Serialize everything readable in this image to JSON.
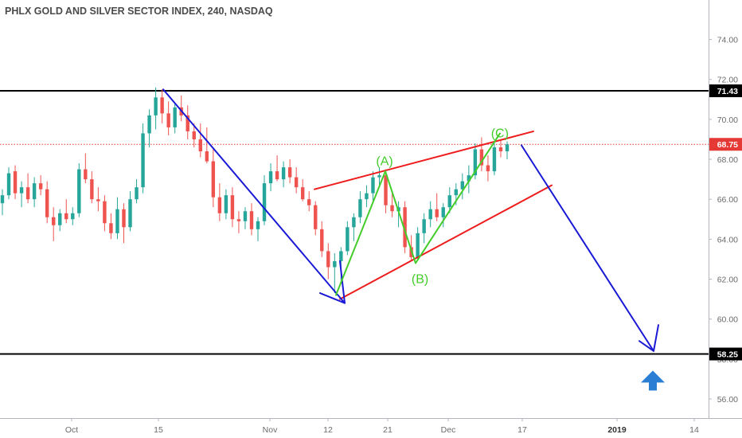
{
  "title": "PHLX GOLD AND SILVER SECTOR INDEX, 240, NASDAQ",
  "colors": {
    "up": "#26a69a",
    "down": "#ef5350",
    "wave_blue": "#1a1ad6",
    "wave_green": "#44cc2a",
    "channel_red": "#ee1c1c",
    "level_black": "#000000",
    "current_price": "#e53935",
    "arrow_blue": "#2a7fd4"
  },
  "chart_data": {
    "type": "candlestick",
    "grid": false,
    "ylim": [
      55.3,
      75.2
    ],
    "y_ticks": [
      "74.00",
      "72.00",
      "70.00",
      "68.00",
      "66.00",
      "64.00",
      "62.00",
      "60.00",
      "58.00",
      "56.00"
    ],
    "x_ticks": [
      "Oct",
      "15",
      "Nov",
      "12",
      "21",
      "Dec",
      "17",
      "2019",
      "14"
    ],
    "x_tick_bold": [
      "2019"
    ],
    "price_tags": [
      {
        "label": "71.43",
        "value": 71.43,
        "style": "black"
      },
      {
        "label": "68.75",
        "value": 68.75,
        "style": "red"
      },
      {
        "label": "58.25",
        "value": 58.25,
        "style": "black"
      }
    ],
    "horizontal_levels": [
      71.43,
      58.25
    ],
    "current_price": 68.75,
    "candles": [
      {
        "o": 65.8,
        "h": 66.5,
        "l": 65.2,
        "c": 66.2
      },
      {
        "o": 66.2,
        "h": 67.6,
        "l": 66.0,
        "c": 67.3
      },
      {
        "o": 67.4,
        "h": 67.7,
        "l": 66.0,
        "c": 66.3
      },
      {
        "o": 66.3,
        "h": 66.9,
        "l": 65.6,
        "c": 66.6
      },
      {
        "o": 66.6,
        "h": 67.3,
        "l": 65.8,
        "c": 66.0
      },
      {
        "o": 66.0,
        "h": 67.1,
        "l": 65.6,
        "c": 66.8
      },
      {
        "o": 66.8,
        "h": 67.2,
        "l": 66.2,
        "c": 66.5
      },
      {
        "o": 66.5,
        "h": 66.9,
        "l": 64.8,
        "c": 65.1
      },
      {
        "o": 65.1,
        "h": 65.6,
        "l": 63.9,
        "c": 64.7
      },
      {
        "o": 64.7,
        "h": 65.5,
        "l": 64.4,
        "c": 65.3
      },
      {
        "o": 65.3,
        "h": 66.0,
        "l": 64.8,
        "c": 65.0
      },
      {
        "o": 65.0,
        "h": 65.6,
        "l": 64.7,
        "c": 65.3
      },
      {
        "o": 65.3,
        "h": 67.8,
        "l": 65.1,
        "c": 67.5
      },
      {
        "o": 67.5,
        "h": 68.3,
        "l": 66.8,
        "c": 67.0
      },
      {
        "o": 67.0,
        "h": 67.4,
        "l": 65.8,
        "c": 66.0
      },
      {
        "o": 66.0,
        "h": 66.6,
        "l": 65.4,
        "c": 65.9
      },
      {
        "o": 65.9,
        "h": 66.2,
        "l": 64.4,
        "c": 64.8
      },
      {
        "o": 64.8,
        "h": 65.3,
        "l": 64.0,
        "c": 64.3
      },
      {
        "o": 64.3,
        "h": 66.1,
        "l": 64.0,
        "c": 65.5
      },
      {
        "o": 65.5,
        "h": 65.8,
        "l": 63.8,
        "c": 64.6
      },
      {
        "o": 64.6,
        "h": 66.4,
        "l": 64.4,
        "c": 66.0
      },
      {
        "o": 66.0,
        "h": 67.0,
        "l": 65.8,
        "c": 66.6
      },
      {
        "o": 66.6,
        "h": 69.8,
        "l": 66.3,
        "c": 69.3
      },
      {
        "o": 69.3,
        "h": 70.5,
        "l": 68.6,
        "c": 70.2
      },
      {
        "o": 70.2,
        "h": 71.6,
        "l": 69.5,
        "c": 71.1
      },
      {
        "o": 71.1,
        "h": 71.5,
        "l": 69.8,
        "c": 70.3
      },
      {
        "o": 70.3,
        "h": 70.9,
        "l": 69.2,
        "c": 69.6
      },
      {
        "o": 69.6,
        "h": 70.8,
        "l": 69.3,
        "c": 70.6
      },
      {
        "o": 70.6,
        "h": 71.2,
        "l": 69.9,
        "c": 70.2
      },
      {
        "o": 70.2,
        "h": 70.7,
        "l": 69.0,
        "c": 69.4
      },
      {
        "o": 69.4,
        "h": 69.8,
        "l": 68.6,
        "c": 69.0
      },
      {
        "o": 69.0,
        "h": 69.8,
        "l": 68.1,
        "c": 68.4
      },
      {
        "o": 68.4,
        "h": 69.6,
        "l": 67.8,
        "c": 67.9
      },
      {
        "o": 67.9,
        "h": 68.5,
        "l": 65.6,
        "c": 66.1
      },
      {
        "o": 66.1,
        "h": 66.8,
        "l": 64.9,
        "c": 65.3
      },
      {
        "o": 65.3,
        "h": 66.5,
        "l": 65.0,
        "c": 66.2
      },
      {
        "o": 66.2,
        "h": 66.6,
        "l": 64.6,
        "c": 65.0
      },
      {
        "o": 65.0,
        "h": 65.4,
        "l": 64.3,
        "c": 64.9
      },
      {
        "o": 64.9,
        "h": 65.6,
        "l": 64.5,
        "c": 65.4
      },
      {
        "o": 65.4,
        "h": 65.8,
        "l": 64.2,
        "c": 64.5
      },
      {
        "o": 64.5,
        "h": 65.1,
        "l": 63.9,
        "c": 64.9
      },
      {
        "o": 64.9,
        "h": 67.2,
        "l": 64.7,
        "c": 66.8
      },
      {
        "o": 66.8,
        "h": 67.8,
        "l": 66.4,
        "c": 67.4
      },
      {
        "o": 67.4,
        "h": 68.2,
        "l": 66.9,
        "c": 67.0
      },
      {
        "o": 67.0,
        "h": 67.9,
        "l": 66.6,
        "c": 67.6
      },
      {
        "o": 67.6,
        "h": 68.0,
        "l": 66.8,
        "c": 67.1
      },
      {
        "o": 67.1,
        "h": 67.6,
        "l": 66.3,
        "c": 66.6
      },
      {
        "o": 66.6,
        "h": 67.0,
        "l": 65.9,
        "c": 66.0
      },
      {
        "o": 66.0,
        "h": 66.4,
        "l": 65.4,
        "c": 65.7
      },
      {
        "o": 65.7,
        "h": 65.9,
        "l": 64.2,
        "c": 64.5
      },
      {
        "o": 64.5,
        "h": 64.9,
        "l": 63.1,
        "c": 63.4
      },
      {
        "o": 63.4,
        "h": 63.8,
        "l": 62.0,
        "c": 62.6
      },
      {
        "o": 62.6,
        "h": 63.3,
        "l": 61.3,
        "c": 62.9
      },
      {
        "o": 62.9,
        "h": 63.6,
        "l": 61.9,
        "c": 63.4
      },
      {
        "o": 63.4,
        "h": 64.9,
        "l": 63.2,
        "c": 64.6
      },
      {
        "o": 64.6,
        "h": 65.3,
        "l": 63.9,
        "c": 65.1
      },
      {
        "o": 65.1,
        "h": 66.4,
        "l": 64.8,
        "c": 66.0
      },
      {
        "o": 66.0,
        "h": 66.7,
        "l": 65.6,
        "c": 66.3
      },
      {
        "o": 66.3,
        "h": 67.4,
        "l": 65.9,
        "c": 67.1
      },
      {
        "o": 67.1,
        "h": 67.6,
        "l": 66.6,
        "c": 67.2
      },
      {
        "o": 67.2,
        "h": 67.5,
        "l": 65.3,
        "c": 65.7
      },
      {
        "o": 65.7,
        "h": 66.4,
        "l": 65.1,
        "c": 65.4
      },
      {
        "o": 65.4,
        "h": 65.9,
        "l": 64.6,
        "c": 65.6
      },
      {
        "o": 65.6,
        "h": 65.9,
        "l": 63.3,
        "c": 63.6
      },
      {
        "o": 63.6,
        "h": 64.2,
        "l": 62.9,
        "c": 63.1
      },
      {
        "o": 63.1,
        "h": 64.6,
        "l": 63.0,
        "c": 64.3
      },
      {
        "o": 64.3,
        "h": 65.3,
        "l": 63.8,
        "c": 65.0
      },
      {
        "o": 65.0,
        "h": 65.9,
        "l": 64.6,
        "c": 65.5
      },
      {
        "o": 65.5,
        "h": 66.3,
        "l": 64.9,
        "c": 65.1
      },
      {
        "o": 65.1,
        "h": 65.8,
        "l": 64.6,
        "c": 65.6
      },
      {
        "o": 65.6,
        "h": 66.6,
        "l": 65.3,
        "c": 66.2
      },
      {
        "o": 66.2,
        "h": 66.8,
        "l": 65.7,
        "c": 66.5
      },
      {
        "o": 66.5,
        "h": 67.3,
        "l": 66.0,
        "c": 66.9
      },
      {
        "o": 66.9,
        "h": 67.7,
        "l": 66.3,
        "c": 67.2
      },
      {
        "o": 67.2,
        "h": 68.8,
        "l": 67.0,
        "c": 68.5
      },
      {
        "o": 68.5,
        "h": 69.1,
        "l": 67.4,
        "c": 67.7
      },
      {
        "o": 67.7,
        "h": 68.2,
        "l": 66.9,
        "c": 67.4
      },
      {
        "o": 67.4,
        "h": 68.9,
        "l": 67.2,
        "c": 68.6
      },
      {
        "o": 68.6,
        "h": 69.0,
        "l": 68.1,
        "c": 68.4
      },
      {
        "o": 68.4,
        "h": 68.9,
        "l": 68.0,
        "c": 68.75
      }
    ],
    "wave_labels": [
      {
        "text": "(A)",
        "x": 0.5428,
        "y": 67.7,
        "color": "wave_green"
      },
      {
        "text": "(B)",
        "x": 0.5928,
        "y": 61.8,
        "color": "wave_green"
      },
      {
        "text": "(C)",
        "x": 0.7054,
        "y": 69.1,
        "color": "wave_green"
      }
    ]
  },
  "drawings": {
    "impulse_down": [
      [
        205,
        71.5
      ],
      [
        433,
        60.8
      ]
    ],
    "impulse_arrow_head": [
      [
        402,
        61.3
      ],
      [
        433,
        60.8
      ],
      [
        427,
        62.9
      ]
    ],
    "zigzag_green": [
      [
        422,
        61.2
      ],
      [
        484,
        67.4
      ],
      [
        522,
        62.8
      ],
      [
        628,
        69.3
      ]
    ],
    "channel_upper": [
      [
        395,
        66.5
      ],
      [
        670,
        69.4
      ]
    ],
    "channel_lower": [
      [
        427,
        61.0
      ],
      [
        693,
        66.7
      ]
    ],
    "projection_down": [
      [
        655,
        68.7
      ],
      [
        821,
        58.4
      ]
    ],
    "projection_arrow_head": [
      [
        803,
        58.9
      ],
      [
        821,
        58.4
      ],
      [
        827,
        59.7
      ]
    ],
    "up_arrow": {
      "x": 820,
      "y": 56.9
    }
  }
}
